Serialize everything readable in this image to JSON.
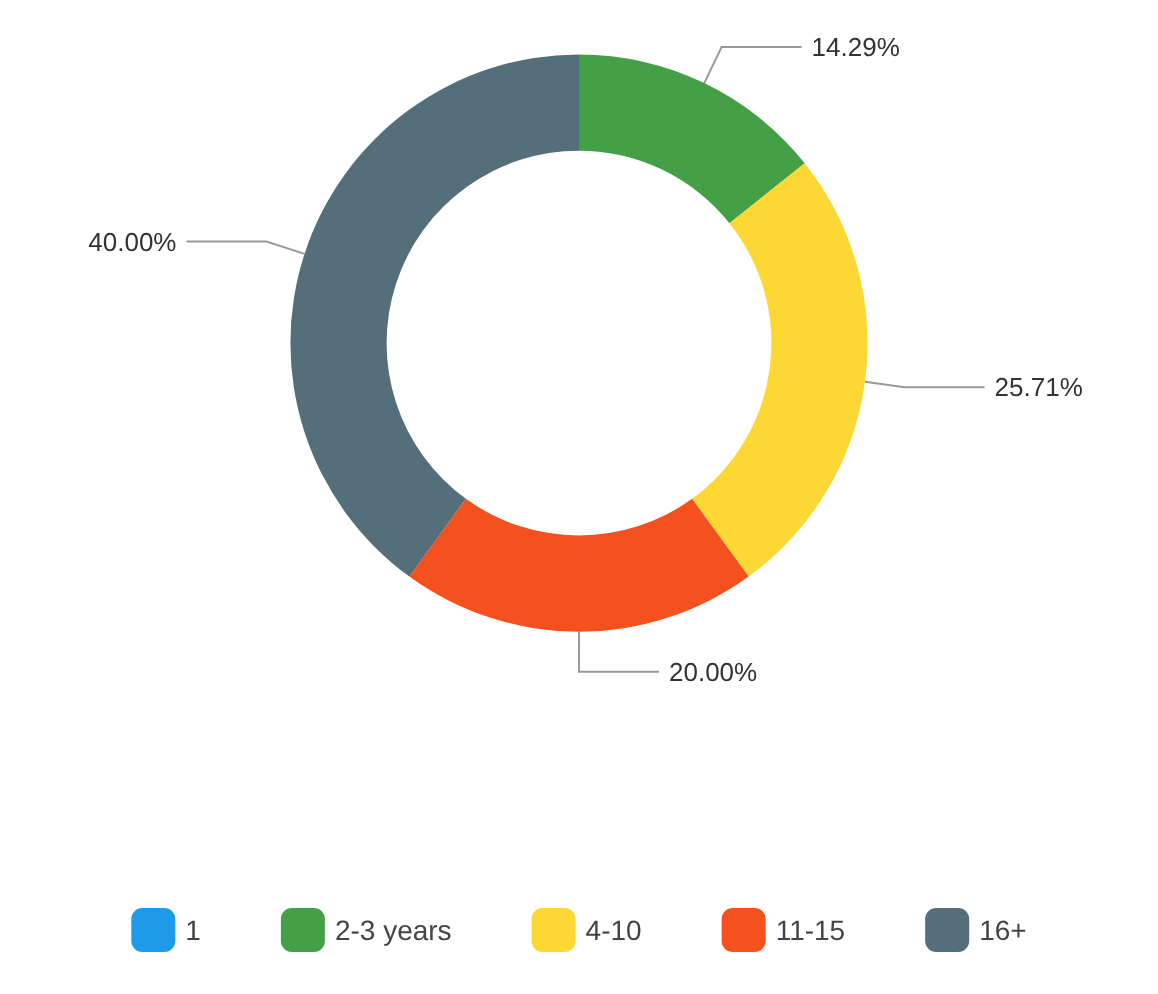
{
  "chart_data": {
    "type": "donut",
    "categories": [
      "1",
      "2-3 years",
      "4-10",
      "11-15",
      "16+"
    ],
    "values": [
      0,
      14.29,
      25.71,
      20.0,
      40.0
    ],
    "value_labels": [
      null,
      "14.29%",
      "25.71%",
      "20.00%",
      "40.00%"
    ],
    "colors": [
      "#1e9be8",
      "#43a047",
      "#fdd835",
      "#f4511e",
      "#546e7a"
    ],
    "legend": "bottom"
  }
}
